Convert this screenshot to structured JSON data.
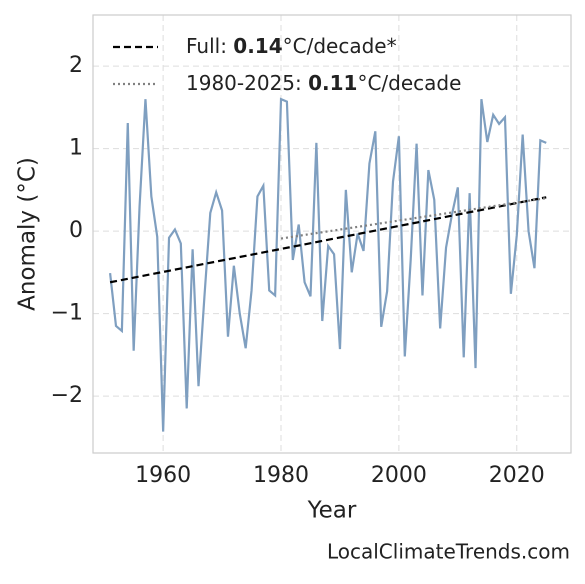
{
  "chart_data": {
    "type": "line",
    "x_label": "Year",
    "y_label": "Anomaly (°C)",
    "source": "LocalClimateTrends.com",
    "xlim": [
      1948.1,
      2029.2
    ],
    "ylim": [
      -2.69,
      2.62
    ],
    "xticks": [
      1960,
      1980,
      2000,
      2020
    ],
    "yticks": [
      {
        "value": -2,
        "label": "−2"
      },
      {
        "value": -1,
        "label": "−1"
      },
      0,
      1,
      2
    ],
    "grid": true,
    "legend": "upper left",
    "series": [
      {
        "color": "#7f9fc0",
        "style": "solid",
        "x": [
          1951,
          1952,
          1953,
          1954,
          1955,
          1956,
          1957,
          1958,
          1959,
          1960,
          1961,
          1962,
          1963,
          1964,
          1965,
          1966,
          1967,
          1968,
          1969,
          1970,
          1971,
          1972,
          1973,
          1974,
          1975,
          1976,
          1977,
          1978,
          1979,
          1980,
          1981,
          1982,
          1983,
          1984,
          1985,
          1986,
          1987,
          1988,
          1989,
          1990,
          1991,
          1992,
          1993,
          1994,
          1995,
          1996,
          1997,
          1998,
          1999,
          2000,
          2001,
          2002,
          2003,
          2004,
          2005,
          2006,
          2007,
          2008,
          2009,
          2010,
          2011,
          2012,
          2013,
          2014,
          2015,
          2016,
          2017,
          2018,
          2019,
          2020,
          2021,
          2022,
          2023,
          2024,
          2025
        ],
        "values": [
          -0.51,
          -1.15,
          -1.21,
          1.31,
          -1.45,
          0.3,
          1.6,
          0.42,
          -0.07,
          -2.43,
          -0.08,
          0.02,
          -0.15,
          -2.15,
          -0.22,
          -1.88,
          -0.8,
          0.22,
          0.47,
          0.25,
          -1.28,
          -0.42,
          -1.0,
          -1.42,
          -0.72,
          0.42,
          0.55,
          -0.72,
          -0.78,
          1.6,
          1.57,
          -0.35,
          0.08,
          -0.62,
          -0.79,
          1.07,
          -1.09,
          -0.18,
          -0.28,
          -1.43,
          0.5,
          -0.5,
          -0.03,
          -0.24,
          0.82,
          1.21,
          -1.16,
          -0.73,
          0.6,
          1.15,
          -1.52,
          -0.35,
          1.06,
          -0.78,
          0.74,
          0.38,
          -1.18,
          -0.2,
          0.2,
          0.53,
          -1.53,
          0.46,
          -1.66,
          1.6,
          1.08,
          1.41,
          1.3,
          1.38,
          -0.76,
          -0.05,
          1.17,
          0.0,
          -0.45,
          1.1,
          1.07
        ]
      },
      {
        "color": "#000000",
        "style": "dashed",
        "x": [
          1951,
          2025
        ],
        "values": [
          -0.62,
          0.41
        ],
        "legend_text": {
          "prefix": "Full: ",
          "slope": 0.14,
          "suffix": "°C/decade*"
        }
      },
      {
        "color": "#808080",
        "style": "dotted",
        "x": [
          1980,
          2025
        ],
        "values": [
          -0.09,
          0.4
        ],
        "legend_text": {
          "prefix": "1980-2025: ",
          "slope": 0.11,
          "suffix": "°C/decade"
        }
      }
    ]
  }
}
